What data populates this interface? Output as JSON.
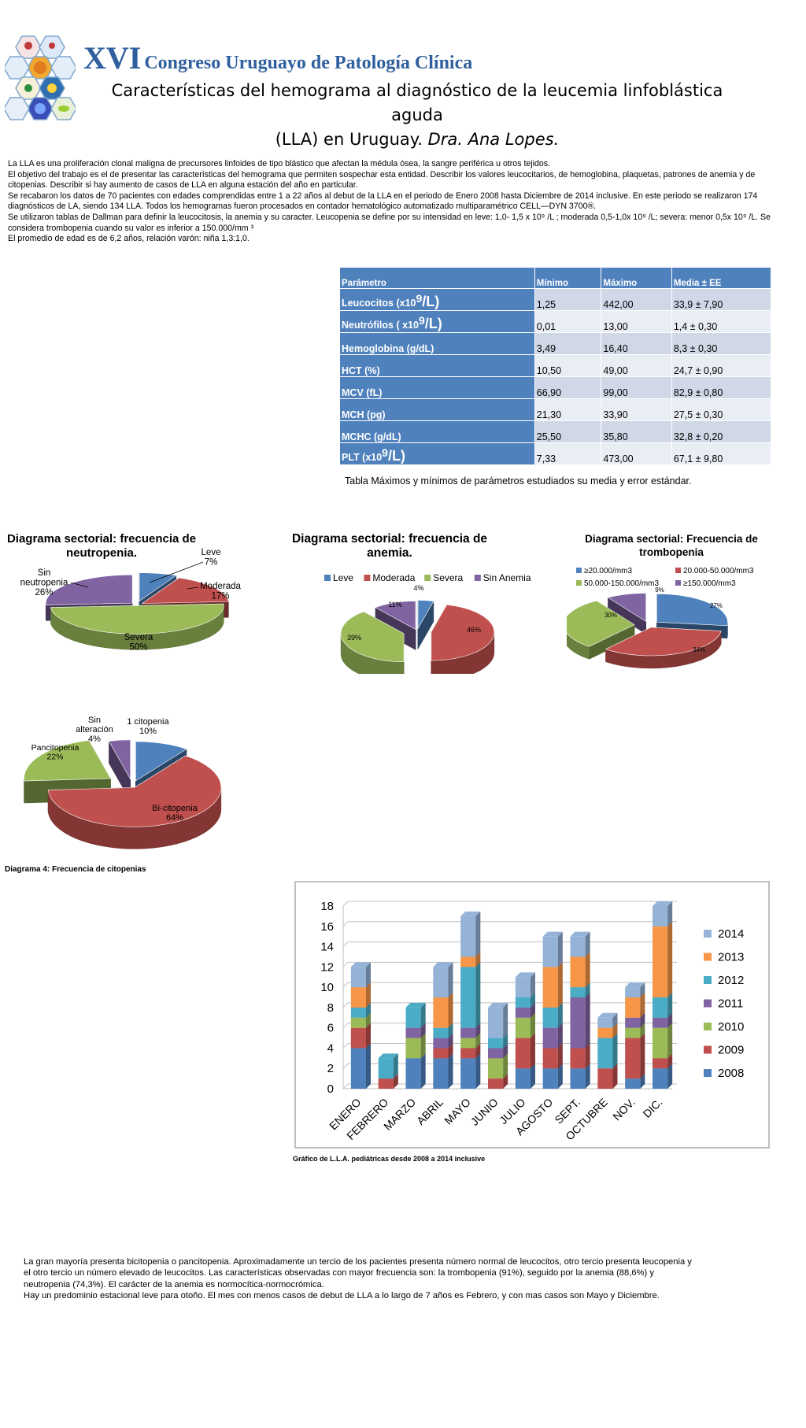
{
  "header": {
    "congress_roman": "XVI",
    "congress_name": "Congreso Uruguayo de Patología Clínica",
    "title_line1": "Características del hemograma al diagnóstico de la leucemia linfoblástica aguda",
    "title_line2_a": "(LLA) en Uruguay.",
    "title_line2_b": "Dra. Ana Lopes."
  },
  "intro": [
    "La LLA es una proliferación clonal maligna de precursores linfoides de tipo blástico que afectan la médula ósea, la sangre periférica u otros tejidos.",
    "El objetivo del trabajo es el de presentar las características del hemograma que permiten sospechar esta entidad. Describir los valores leucocitarios, de hemoglobina, plaquetas, patrones de anemia y de citopenias. Describir si hay aumento de casos de LLA en alguna estación del año en particular.",
    "Se recabaron los datos de 70 pacientes con edades comprendidas entre 1 a 22 años al debut de la LLA en el periodo de Enero 2008 hasta Diciembre de 2014 inclusive. En este periodo se realizaron 174 diagnósticos de LA, siendo 134  LLA. Todos los hemogramas fueron procesados en contador hematológico automatizado multiparamétrico CELL—DYN 3700®.",
    "Se utilizaron tablas de Dallman para definir la leucocitosis, la anemia y su caracter. Leucopenia se define por su intensidad en leve: 1,0- 1,5 x 10⁹ /L ; moderada 0,5-1,0x 10⁹ /L; severa: menor 0,5x 10⁹ /L. Se considera trombopenia cuando su valor es inferior a 150.000/mm ³",
    " El promedio de edad es de 6,2 años, relación varón: niña 1,3:1,0."
  ],
  "table": {
    "headers": [
      "Parámetro",
      "Mínimo",
      "Máximo",
      "Media ± EE"
    ],
    "rows": [
      {
        "param": "Leucocitos  (x10",
        "sup": "9",
        "unit": "/L)",
        "min": "1,25",
        "max": "442,00",
        "mean": "33,9 ±  7,90"
      },
      {
        "param": "Neutrófilos ( x10",
        "sup": "9",
        "unit": "/L)",
        "min": "0,01",
        "max": "13,00",
        "mean": "1,4  ±   0,30"
      },
      {
        "param": "Hemoglobina (g/dL)",
        "sup": "",
        "unit": "",
        "min": "3,49",
        "max": "16,40",
        "mean": "8,3 ±   0,30"
      },
      {
        "param": "HCT (%)",
        "sup": "",
        "unit": "",
        "min": "10,50",
        "max": "49,00",
        "mean": "24,7 ±  0,90"
      },
      {
        "param": "MCV (fL)",
        "sup": "",
        "unit": "",
        "min": "66,90",
        "max": "99,00",
        "mean": "82,9 ±  0,80"
      },
      {
        "param": "MCH (pg)",
        "sup": "",
        "unit": "",
        "min": "21,30",
        "max": "33,90",
        "mean": "27,5 ±  0,30"
      },
      {
        "param": "MCHC (g/dL)",
        "sup": "",
        "unit": "",
        "min": "25,50",
        "max": "35,80",
        "mean": "32,8 ±  0,20"
      },
      {
        "param": "PLT (x10",
        "sup": "9",
        "unit": "/L)",
        "min": "7,33",
        "max": "473,00",
        "mean": "67,1 ±  9,80"
      }
    ],
    "caption": "Tabla Máximos y mínimos de parámetros estudiados su media y error estándar."
  },
  "chart_data": [
    {
      "type": "pie",
      "title": "Diagrama sectorial: frecuencia de neutropenia.",
      "categories": [
        "Leve",
        "Moderada",
        "Severa",
        "Sin neutropenia"
      ],
      "values": [
        7,
        17,
        50,
        26
      ],
      "labels": [
        "Leve\n7%",
        "Moderada\n17%",
        "Severa\n50%",
        "Sin\nneutropenia\n26%"
      ],
      "colors": [
        "#4f81bd",
        "#c0504d",
        "#9bbb59",
        "#8064a2"
      ]
    },
    {
      "type": "pie",
      "title": "Diagrama sectorial: frecuencia de anemia.",
      "categories": [
        "Leve",
        "Moderada",
        "Severa",
        "Sin Anemia"
      ],
      "values": [
        4,
        46,
        39,
        11
      ],
      "labels": [
        "4%",
        "46%",
        "39%",
        "11%"
      ],
      "legend": "top",
      "colors": [
        "#4f81bd",
        "#c0504d",
        "#9bbb59",
        "#8064a2"
      ]
    },
    {
      "type": "pie",
      "title": "Diagrama sectorial: Frecuencia de trombopenia",
      "categories": [
        "≥20.000/mm3",
        "20.000-50.000/mm3",
        "50.000-150.000/mm3",
        "≥150.000/mm3"
      ],
      "values": [
        27,
        34,
        30,
        9
      ],
      "labels": [
        "27%",
        "34%",
        "30%",
        "9%"
      ],
      "legend": "top",
      "colors": [
        "#4f81bd",
        "#c0504d",
        "#9bbb59",
        "#8064a2"
      ]
    },
    {
      "type": "pie",
      "title": "Diagrama 4: Frecuencia de citopenias",
      "categories": [
        "1 citopenia",
        "Bi-citopenia",
        "Pancitopenia",
        "Sin alteración"
      ],
      "values": [
        10,
        64,
        22,
        4
      ],
      "labels": [
        "1 citopenia\n10%",
        "Bi-citopenia\n64%",
        "Pancitopenia\n22%",
        "Sin\nalteración\n4%"
      ],
      "colors": [
        "#4f81bd",
        "#c0504d",
        "#9bbb59",
        "#8064a2"
      ]
    },
    {
      "type": "bar",
      "stacked": true,
      "title": "Gráfico de L.L.A. pediátricas desde 2008 a 2014 inclusive",
      "categories": [
        "ENERO",
        "FEBRERO",
        "MARZO",
        "ABRIL",
        "MAYO",
        "JUNIO",
        "JULIO",
        "AGOSTO",
        "SEPT.",
        "OCTUBRE",
        "NOV.",
        "DIC."
      ],
      "ylim": [
        0,
        18
      ],
      "yticks": [
        0,
        2,
        4,
        6,
        8,
        10,
        12,
        14,
        16,
        18
      ],
      "legend": "right",
      "grid": true,
      "series": [
        {
          "name": "2008",
          "color": "#4f81bd",
          "values": [
            4,
            0,
            3,
            3,
            3,
            0,
            2,
            2,
            2,
            0,
            1,
            2
          ]
        },
        {
          "name": "2009",
          "color": "#c0504d",
          "values": [
            2,
            1,
            0,
            1,
            1,
            1,
            3,
            2,
            2,
            2,
            4,
            1
          ]
        },
        {
          "name": "2010",
          "color": "#9bbb59",
          "values": [
            1,
            0,
            2,
            0,
            1,
            2,
            2,
            0,
            0,
            0,
            1,
            3
          ]
        },
        {
          "name": "2011",
          "color": "#8064a2",
          "values": [
            0,
            0,
            1,
            1,
            1,
            1,
            1,
            2,
            5,
            0,
            1,
            1
          ]
        },
        {
          "name": "2012",
          "color": "#4bacc6",
          "values": [
            1,
            2,
            2,
            1,
            6,
            1,
            1,
            2,
            1,
            3,
            0,
            2
          ]
        },
        {
          "name": "2013",
          "color": "#f79646",
          "values": [
            2,
            0,
            0,
            3,
            1,
            0,
            0,
            4,
            3,
            1,
            2,
            7
          ]
        },
        {
          "name": "2014",
          "color": "#95b3d7",
          "values": [
            2,
            0,
            0,
            3,
            4,
            3,
            2,
            3,
            2,
            1,
            1,
            2
          ]
        }
      ]
    }
  ],
  "conclusion": [
    "La gran mayoría presenta bicitopenia o pancitopenia. Aproximadamente un tercio de los pacientes presenta número normal de leucocitos, otro tercio presenta leucopenia y el otro tercio un número elevado de leucocitos. Las características observadas con mayor frecuencia son: la trombopenia (91%), seguido por la anemia (88,6%) y neutropenia (74,3%). El carácter de la anemia es normocítica-normocrómica.",
    "Hay un predominio estacional leve para otoño. El mes con menos casos de debut de LLA a lo largo de 7 años es Febrero, y con mas casos son Mayo y Diciembre."
  ]
}
